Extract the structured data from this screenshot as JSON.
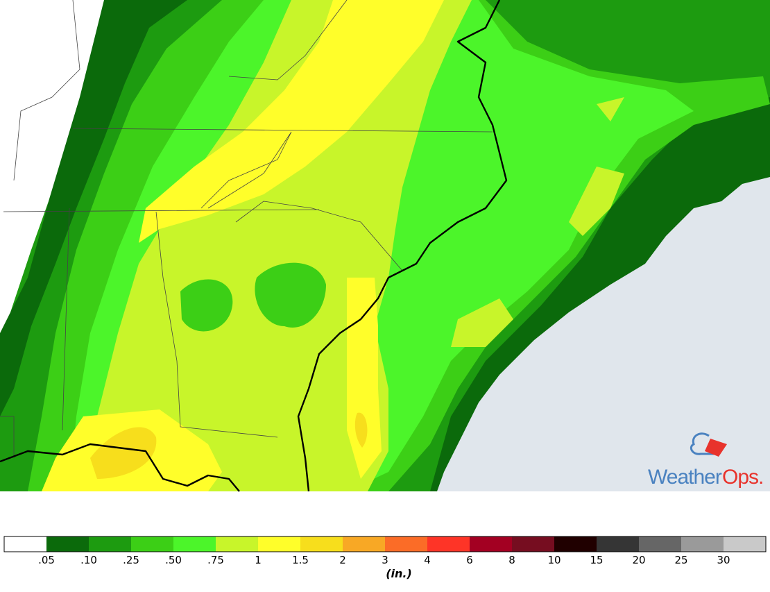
{
  "map": {
    "logo": {
      "part1": "Weather",
      "part2": "Ops."
    }
  },
  "legend": {
    "colors": [
      "#ffffff",
      "#0b6a0b",
      "#1d9b10",
      "#3ccf16",
      "#4cf52a",
      "#c8f52a",
      "#fffe2a",
      "#f7de1c",
      "#f8a825",
      "#fb6c27",
      "#fe3427",
      "#a30022",
      "#760d20",
      "#200000",
      "#353535",
      "#666666",
      "#9a9a9a",
      "#c9c9c9"
    ],
    "labels": [
      ".05",
      ".10",
      ".25",
      ".50",
      ".75",
      "1",
      "1.5",
      "2",
      "3",
      "4",
      "6",
      "8",
      "10",
      "15",
      "20",
      "25",
      "30"
    ],
    "unit": "(in.)"
  }
}
